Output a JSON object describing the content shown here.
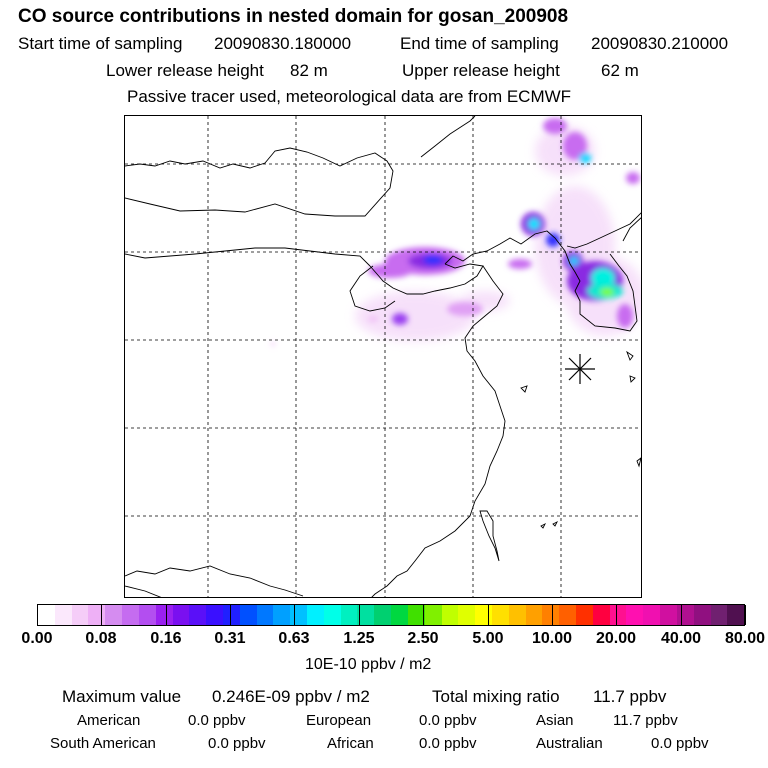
{
  "header": {
    "title": "CO  source contributions in nested domain for gosan_200908",
    "start_label": "Start time of sampling",
    "start_value": "20090830.180000",
    "end_label": "End time of sampling",
    "end_value": "20090830.210000",
    "lower_label": "Lower release height",
    "lower_value": "82 m",
    "upper_label": "Upper release height",
    "upper_value": "62 m",
    "note": "Passive tracer used, meteorological data are from ECMWF"
  },
  "map": {
    "receptor_marker": "asterisk-icon",
    "grid": "dashed",
    "plume_colors": [
      "#c86cf0",
      "#8a2be2",
      "#2a2aff",
      "#00c8ff",
      "#00ffd0",
      "#7fff00"
    ]
  },
  "colorbar": {
    "labels": [
      "0.00",
      "0.08",
      "0.16",
      "0.31",
      "0.63",
      "1.25",
      "2.50",
      "5.00",
      "10.00",
      "20.00",
      "40.00",
      "80.00"
    ],
    "colors": [
      "#ffffff",
      "#fbe8fc",
      "#f5cdf8",
      "#eeb0f6",
      "#d58cf0",
      "#c56cf0",
      "#b34ef0",
      "#9a20f0",
      "#7a10f0",
      "#5a10f8",
      "#3a10ff",
      "#2020ff",
      "#0050ff",
      "#0078ff",
      "#00a0ff",
      "#00c0ff",
      "#00f0ff",
      "#00ffe8",
      "#00f0c0",
      "#00e0a0",
      "#00d070",
      "#00d840",
      "#40e000",
      "#80f000",
      "#c0ff00",
      "#e0ff00",
      "#ffff00",
      "#ffe000",
      "#ffc000",
      "#ffa000",
      "#ff8000",
      "#ff6000",
      "#ff3000",
      "#ff0040",
      "#ff1090",
      "#ff10b0",
      "#f010b0",
      "#d010a0",
      "#b01090",
      "#901080",
      "#702070",
      "#501050"
    ],
    "units": "10E-10 ppbv / m2"
  },
  "stats": {
    "max_label": "Maximum value",
    "max_value": "0.246E-09 ppbv / m2",
    "total_label": "Total mixing ratio",
    "total_value": "11.7 ppbv",
    "regions": [
      {
        "name": "American",
        "value": "0.0 ppbv"
      },
      {
        "name": "European",
        "value": "0.0 ppbv"
      },
      {
        "name": "Asian",
        "value": "11.7 ppbv"
      },
      {
        "name": "South American",
        "value": "0.0 ppbv"
      },
      {
        "name": "African",
        "value": "0.0 ppbv"
      },
      {
        "name": "Australian",
        "value": "0.0 ppbv"
      }
    ]
  }
}
